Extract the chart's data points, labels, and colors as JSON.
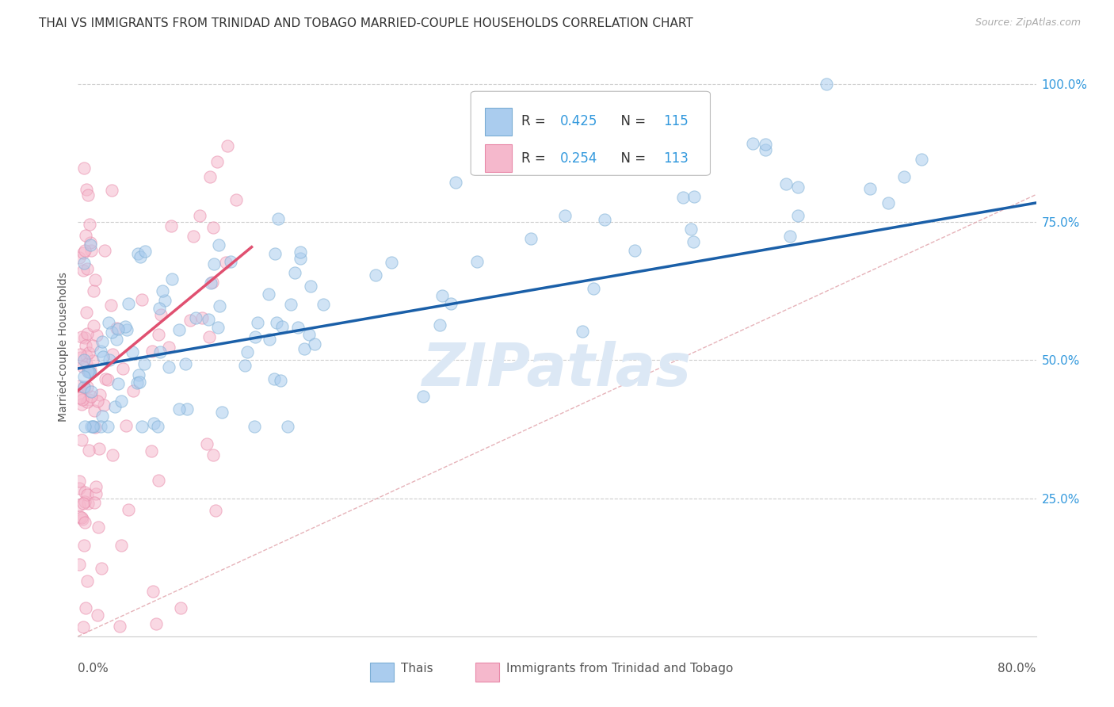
{
  "title": "THAI VS IMMIGRANTS FROM TRINIDAD AND TOBAGO MARRIED-COUPLE HOUSEHOLDS CORRELATION CHART",
  "source": "Source: ZipAtlas.com",
  "xlabel_bottom_left": "0.0%",
  "xlabel_bottom_right": "80.0%",
  "ylabel": "Married-couple Households",
  "ytick_labels": [
    "100.0%",
    "75.0%",
    "50.0%",
    "25.0%"
  ],
  "ytick_values": [
    1.0,
    0.75,
    0.5,
    0.25
  ],
  "xmin": 0.0,
  "xmax": 0.8,
  "ymin": 0.0,
  "ymax": 1.05,
  "legend_label1": "Thais",
  "legend_label2": "Immigrants from Trinidad and Tobago",
  "R1": 0.425,
  "N1": 115,
  "R2": 0.254,
  "N2": 113,
  "color_blue_fill": "#aaccee",
  "color_blue_edge": "#7aadd4",
  "color_pink_fill": "#f5b8cc",
  "color_pink_edge": "#e888a8",
  "color_line_blue": "#1a5fa8",
  "color_line_pink": "#e05070",
  "color_diag": "#e0a0a8",
  "title_fontsize": 11,
  "source_fontsize": 9,
  "axis_label_fontsize": 10,
  "tick_fontsize": 11,
  "scatter_size": 120,
  "scatter_alpha": 0.55,
  "watermark_color": "#dce8f5",
  "legend_text_color": "#333333",
  "ytick_color": "#3399dd",
  "axis_color": "#cccccc",
  "blue_line_start_x": 0.0,
  "blue_line_start_y": 0.485,
  "blue_line_end_x": 0.8,
  "blue_line_end_y": 0.785,
  "pink_line_start_x": 0.0,
  "pink_line_start_y": 0.445,
  "pink_line_end_x": 0.145,
  "pink_line_end_y": 0.705
}
